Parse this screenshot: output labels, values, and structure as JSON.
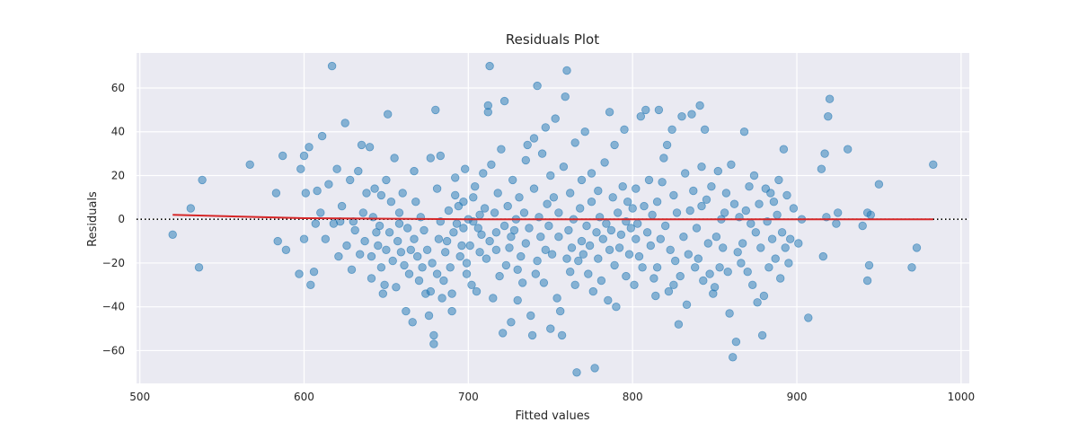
{
  "chart_data": {
    "type": "scatter",
    "title": "Residuals Plot",
    "xlabel": "Fitted values",
    "ylabel": "Residuals",
    "xlim": [
      498,
      1005
    ],
    "ylim": [
      -75,
      76
    ],
    "xticks": [
      500,
      600,
      700,
      800,
      900,
      1000
    ],
    "yticks": [
      -60,
      -40,
      -20,
      0,
      20,
      40,
      60
    ],
    "grid": true,
    "style": "seaborn-darkgrid",
    "background": "#eaeaf2",
    "colors": {
      "points": "#1f77b4",
      "trend": "#d62728",
      "zero_line": "#000000"
    },
    "reference_line": {
      "y": 0,
      "style": "dotted"
    },
    "trend_line": {
      "x": [
        520,
        600,
        700,
        800,
        900,
        983
      ],
      "y": [
        2,
        0.5,
        0,
        0,
        0,
        0
      ]
    },
    "points": [
      [
        520,
        -7
      ],
      [
        531,
        5
      ],
      [
        536,
        -22
      ],
      [
        538,
        18
      ],
      [
        567,
        25
      ],
      [
        583,
        12
      ],
      [
        584,
        -10
      ],
      [
        587,
        29
      ],
      [
        589,
        -14
      ],
      [
        597,
        -25
      ],
      [
        598,
        23
      ],
      [
        600,
        29
      ],
      [
        600,
        -9
      ],
      [
        601,
        12
      ],
      [
        603,
        33
      ],
      [
        604,
        -30
      ],
      [
        606,
        -24
      ],
      [
        607,
        -2
      ],
      [
        608,
        13
      ],
      [
        610,
        3
      ],
      [
        611,
        38
      ],
      [
        613,
        -9
      ],
      [
        615,
        16
      ],
      [
        617,
        70
      ],
      [
        618,
        -2
      ],
      [
        620,
        23
      ],
      [
        621,
        -17
      ],
      [
        622,
        -1
      ],
      [
        623,
        6
      ],
      [
        625,
        44
      ],
      [
        626,
        -12
      ],
      [
        628,
        18
      ],
      [
        629,
        -23
      ],
      [
        630,
        -1
      ],
      [
        631,
        -5
      ],
      [
        633,
        22
      ],
      [
        634,
        -16
      ],
      [
        635,
        34
      ],
      [
        636,
        3
      ],
      [
        637,
        -10
      ],
      [
        638,
        12
      ],
      [
        640,
        33
      ],
      [
        641,
        -27
      ],
      [
        641,
        -17
      ],
      [
        642,
        1
      ],
      [
        643,
        14
      ],
      [
        644,
        -6
      ],
      [
        645,
        -12
      ],
      [
        646,
        -3
      ],
      [
        647,
        11
      ],
      [
        647,
        -22
      ],
      [
        648,
        -34
      ],
      [
        649,
        -30
      ],
      [
        650,
        -14
      ],
      [
        650,
        18
      ],
      [
        651,
        48
      ],
      [
        652,
        -6
      ],
      [
        653,
        8
      ],
      [
        654,
        -19
      ],
      [
        655,
        28
      ],
      [
        656,
        -31
      ],
      [
        657,
        -10
      ],
      [
        658,
        -2
      ],
      [
        658,
        3
      ],
      [
        659,
        -15
      ],
      [
        660,
        12
      ],
      [
        661,
        -21
      ],
      [
        662,
        -42
      ],
      [
        663,
        -4
      ],
      [
        664,
        -25
      ],
      [
        665,
        -14
      ],
      [
        666,
        -47
      ],
      [
        667,
        22
      ],
      [
        667,
        -9
      ],
      [
        668,
        8
      ],
      [
        669,
        -17
      ],
      [
        670,
        -28
      ],
      [
        671,
        1
      ],
      [
        672,
        -22
      ],
      [
        673,
        -5
      ],
      [
        674,
        -34
      ],
      [
        675,
        -14
      ],
      [
        676,
        -44
      ],
      [
        677,
        28
      ],
      [
        677,
        -33
      ],
      [
        678,
        -20
      ],
      [
        679,
        -57
      ],
      [
        679,
        -53
      ],
      [
        680,
        50
      ],
      [
        681,
        -25
      ],
      [
        681,
        14
      ],
      [
        682,
        -9
      ],
      [
        683,
        -1
      ],
      [
        683,
        29
      ],
      [
        684,
        -36
      ],
      [
        685,
        -28
      ],
      [
        686,
        -15
      ],
      [
        687,
        -10
      ],
      [
        688,
        4
      ],
      [
        689,
        -22
      ],
      [
        690,
        -34
      ],
      [
        690,
        -42
      ],
      [
        691,
        -6
      ],
      [
        692,
        11
      ],
      [
        692,
        19
      ],
      [
        693,
        -2
      ],
      [
        694,
        6
      ],
      [
        695,
        -17
      ],
      [
        696,
        -12
      ],
      [
        697,
        -4
      ],
      [
        697,
        8
      ],
      [
        698,
        23
      ],
      [
        699,
        -25
      ],
      [
        699,
        -20
      ],
      [
        700,
        0
      ],
      [
        701,
        -12
      ],
      [
        702,
        -30
      ],
      [
        703,
        -1
      ],
      [
        703,
        10
      ],
      [
        704,
        15
      ],
      [
        705,
        -33
      ],
      [
        706,
        -4
      ],
      [
        707,
        2
      ],
      [
        707,
        -15
      ],
      [
        708,
        -7
      ],
      [
        709,
        21
      ],
      [
        710,
        5
      ],
      [
        711,
        -18
      ],
      [
        712,
        49
      ],
      [
        712,
        52
      ],
      [
        713,
        70
      ],
      [
        713,
        -10
      ],
      [
        714,
        25
      ],
      [
        715,
        -36
      ],
      [
        716,
        3
      ],
      [
        717,
        -6
      ],
      [
        717,
        -14
      ],
      [
        718,
        12
      ],
      [
        719,
        -26
      ],
      [
        720,
        32
      ],
      [
        721,
        -52
      ],
      [
        722,
        54
      ],
      [
        722,
        -3
      ],
      [
        723,
        -21
      ],
      [
        724,
        6
      ],
      [
        725,
        -13
      ],
      [
        726,
        -47
      ],
      [
        726,
        -8
      ],
      [
        727,
        18
      ],
      [
        728,
        -5
      ],
      [
        729,
        0
      ],
      [
        730,
        -23
      ],
      [
        730,
        -37
      ],
      [
        731,
        10
      ],
      [
        732,
        -17
      ],
      [
        733,
        -29
      ],
      [
        734,
        3
      ],
      [
        735,
        -11
      ],
      [
        735,
        27
      ],
      [
        736,
        34
      ],
      [
        737,
        -4
      ],
      [
        738,
        -44
      ],
      [
        739,
        -53
      ],
      [
        740,
        14
      ],
      [
        740,
        37
      ],
      [
        741,
        -25
      ],
      [
        742,
        61
      ],
      [
        742,
        -19
      ],
      [
        743,
        1
      ],
      [
        744,
        -8
      ],
      [
        745,
        30
      ],
      [
        746,
        -29
      ],
      [
        747,
        -14
      ],
      [
        747,
        42
      ],
      [
        748,
        7
      ],
      [
        749,
        -3
      ],
      [
        750,
        20
      ],
      [
        750,
        -50
      ],
      [
        751,
        -16
      ],
      [
        752,
        10
      ],
      [
        753,
        46
      ],
      [
        754,
        -36
      ],
      [
        755,
        -8
      ],
      [
        755,
        3
      ],
      [
        756,
        -42
      ],
      [
        757,
        -53
      ],
      [
        758,
        24
      ],
      [
        759,
        56
      ],
      [
        760,
        68
      ],
      [
        760,
        -18
      ],
      [
        761,
        -5
      ],
      [
        762,
        12
      ],
      [
        762,
        -24
      ],
      [
        763,
        -13
      ],
      [
        764,
        0
      ],
      [
        765,
        35
      ],
      [
        765,
        -30
      ],
      [
        766,
        -70
      ],
      [
        767,
        -19
      ],
      [
        768,
        5
      ],
      [
        769,
        -10
      ],
      [
        769,
        18
      ],
      [
        770,
        -16
      ],
      [
        771,
        40
      ],
      [
        772,
        -3
      ],
      [
        773,
        -25
      ],
      [
        774,
        -12
      ],
      [
        775,
        8
      ],
      [
        775,
        21
      ],
      [
        776,
        -33
      ],
      [
        777,
        -68
      ],
      [
        778,
        -6
      ],
      [
        779,
        13
      ],
      [
        779,
        -18
      ],
      [
        780,
        1
      ],
      [
        781,
        -28
      ],
      [
        782,
        -9
      ],
      [
        783,
        26
      ],
      [
        784,
        -2
      ],
      [
        785,
        -37
      ],
      [
        786,
        -14
      ],
      [
        786,
        49
      ],
      [
        787,
        -5
      ],
      [
        788,
        10
      ],
      [
        789,
        -21
      ],
      [
        789,
        34
      ],
      [
        790,
        -40
      ],
      [
        791,
        3
      ],
      [
        792,
        -13
      ],
      [
        793,
        -7
      ],
      [
        794,
        15
      ],
      [
        795,
        41
      ],
      [
        796,
        -1
      ],
      [
        796,
        -26
      ],
      [
        797,
        8
      ],
      [
        798,
        -16
      ],
      [
        799,
        -4
      ],
      [
        800,
        5
      ],
      [
        801,
        -30
      ],
      [
        802,
        14
      ],
      [
        802,
        -9
      ],
      [
        803,
        -2
      ],
      [
        804,
        -17
      ],
      [
        805,
        47
      ],
      [
        806,
        -22
      ],
      [
        807,
        6
      ],
      [
        808,
        50
      ],
      [
        809,
        -6
      ],
      [
        810,
        18
      ],
      [
        811,
        -12
      ],
      [
        812,
        2
      ],
      [
        813,
        -27
      ],
      [
        814,
        -35
      ],
      [
        815,
        8
      ],
      [
        815,
        -22
      ],
      [
        816,
        50
      ],
      [
        817,
        -9
      ],
      [
        818,
        17
      ],
      [
        819,
        28
      ],
      [
        820,
        -3
      ],
      [
        821,
        34
      ],
      [
        822,
        -33
      ],
      [
        823,
        -14
      ],
      [
        824,
        41
      ],
      [
        825,
        -30
      ],
      [
        825,
        11
      ],
      [
        826,
        -19
      ],
      [
        827,
        3
      ],
      [
        828,
        -48
      ],
      [
        829,
        -26
      ],
      [
        830,
        47
      ],
      [
        831,
        -8
      ],
      [
        832,
        21
      ],
      [
        833,
        -39
      ],
      [
        834,
        -16
      ],
      [
        835,
        4
      ],
      [
        836,
        48
      ],
      [
        837,
        13
      ],
      [
        838,
        -22
      ],
      [
        839,
        -4
      ],
      [
        840,
        -18
      ],
      [
        841,
        52
      ],
      [
        842,
        24
      ],
      [
        842,
        6
      ],
      [
        843,
        -28
      ],
      [
        844,
        41
      ],
      [
        845,
        9
      ],
      [
        846,
        -11
      ],
      [
        847,
        -25
      ],
      [
        848,
        15
      ],
      [
        849,
        -34
      ],
      [
        850,
        -31
      ],
      [
        851,
        -8
      ],
      [
        852,
        22
      ],
      [
        853,
        -22
      ],
      [
        854,
        0
      ],
      [
        855,
        -13
      ],
      [
        856,
        3
      ],
      [
        857,
        12
      ],
      [
        858,
        -24
      ],
      [
        859,
        -43
      ],
      [
        860,
        25
      ],
      [
        861,
        -63
      ],
      [
        862,
        7
      ],
      [
        863,
        -56
      ],
      [
        864,
        -15
      ],
      [
        865,
        1
      ],
      [
        866,
        -20
      ],
      [
        867,
        -11
      ],
      [
        868,
        40
      ],
      [
        869,
        4
      ],
      [
        870,
        -24
      ],
      [
        871,
        15
      ],
      [
        872,
        -2
      ],
      [
        873,
        -30
      ],
      [
        874,
        20
      ],
      [
        875,
        -6
      ],
      [
        876,
        -38
      ],
      [
        877,
        7
      ],
      [
        878,
        -13
      ],
      [
        879,
        -53
      ],
      [
        880,
        -35
      ],
      [
        881,
        14
      ],
      [
        882,
        -1
      ],
      [
        883,
        -22
      ],
      [
        884,
        12
      ],
      [
        885,
        -9
      ],
      [
        886,
        8
      ],
      [
        887,
        -18
      ],
      [
        888,
        2
      ],
      [
        889,
        18
      ],
      [
        890,
        -27
      ],
      [
        891,
        -6
      ],
      [
        892,
        32
      ],
      [
        893,
        -13
      ],
      [
        894,
        11
      ],
      [
        895,
        -20
      ],
      [
        896,
        -9
      ],
      [
        898,
        5
      ],
      [
        901,
        -11
      ],
      [
        903,
        0
      ],
      [
        907,
        -45
      ],
      [
        915,
        23
      ],
      [
        916,
        -17
      ],
      [
        917,
        30
      ],
      [
        918,
        1
      ],
      [
        919,
        47
      ],
      [
        920,
        55
      ],
      [
        924,
        -2
      ],
      [
        925,
        3
      ],
      [
        931,
        32
      ],
      [
        940,
        -3
      ],
      [
        943,
        3
      ],
      [
        943,
        -28
      ],
      [
        944,
        -21
      ],
      [
        945,
        2
      ],
      [
        950,
        16
      ],
      [
        970,
        -22
      ],
      [
        973,
        -13
      ],
      [
        983,
        25
      ]
    ]
  }
}
